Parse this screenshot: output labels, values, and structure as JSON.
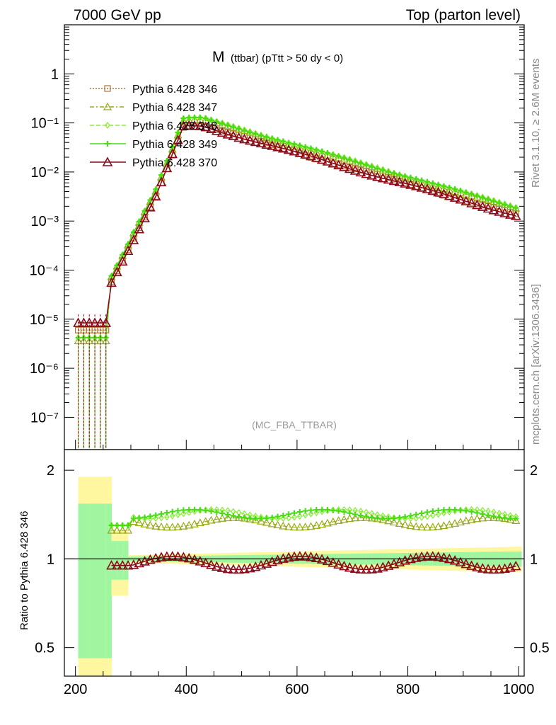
{
  "header": {
    "left": "7000 GeV pp",
    "right": "Top (parton level)"
  },
  "side_labels": {
    "rivet": "Rivet 3.1.10, ≥ 2.6M events",
    "mcplots": "mcplots.cern.ch [arXiv:1306.3436]"
  },
  "chart_data": {
    "type": "line",
    "title_main": "M",
    "title_sub": "(ttbar) (pTtt > 50 dy < 0)",
    "watermark": "(MC_FBA_TTBAR)",
    "ylabel_ratio": "Ratio to Pythia 6.428 346",
    "x_ticks": [
      "200",
      "400",
      "600",
      "800",
      "1000"
    ],
    "x_tick_values": [
      200,
      400,
      600,
      800,
      1000
    ],
    "xlim": [
      180,
      1010
    ],
    "main": {
      "scale": "log",
      "ylim": [
        2.2e-08,
        10
      ],
      "y_ticks": [
        {
          "v": 1,
          "label": "1"
        },
        {
          "v": 0.1,
          "label": "10⁻¹"
        },
        {
          "v": 0.01,
          "label": "10⁻²"
        },
        {
          "v": 0.001,
          "label": "10⁻³"
        },
        {
          "v": 0.0001,
          "label": "10⁻⁴"
        },
        {
          "v": 1e-05,
          "label": "10⁻⁵"
        },
        {
          "v": 1e-06,
          "label": "10⁻⁶"
        },
        {
          "v": 1e-07,
          "label": "10⁻⁷"
        }
      ]
    },
    "ratio": {
      "scale": "log",
      "ylim": [
        0.4,
        2.35
      ],
      "y_ticks": [
        {
          "v": 2,
          "label": "2"
        },
        {
          "v": 1,
          "label": "1"
        },
        {
          "v": 0.5,
          "label": "0.5"
        }
      ]
    },
    "series": [
      {
        "name": "Pythia 6.428 346",
        "color": "#b87333",
        "marker": "square",
        "dash": "2,2",
        "ratio_level": 1.0,
        "low_scale": 1.0,
        "bump": 1.0
      },
      {
        "name": "Pythia 6.428 347",
        "color": "#9aaa1a",
        "marker": "triangle",
        "dash": "6,3,2,3",
        "ratio_level": 1.33,
        "low_scale": 0.6,
        "bump": 1.25
      },
      {
        "name": "Pythia 6.428 348",
        "color": "#88ee33",
        "marker": "diamond",
        "dash": "6,3",
        "ratio_level": 1.42,
        "low_scale": 0.7,
        "bump": 1.3
      },
      {
        "name": "Pythia 6.428 349",
        "color": "#44dd11",
        "marker": "plus",
        "dash": "",
        "ratio_level": 1.42,
        "low_scale": 0.7,
        "bump": 1.3
      },
      {
        "name": "Pythia 6.428 370",
        "color": "#8b0a1a",
        "marker": "triangle-big",
        "dash": "",
        "ratio_level": 0.97,
        "low_scale": 1.4,
        "bump": 0.95
      }
    ]
  }
}
